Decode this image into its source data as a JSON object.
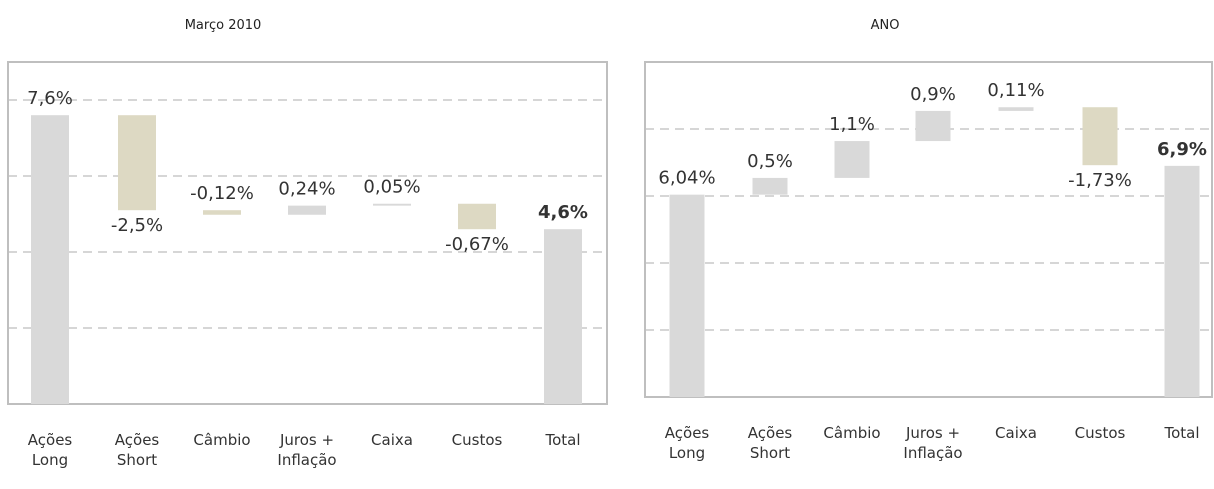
{
  "chart_data": [
    {
      "type": "waterfall",
      "title": "Março 2010",
      "categories": [
        "Ações Long",
        "Ações Short",
        "Câmbio",
        "Juros + Inflação",
        "Caixa",
        "Custos",
        "Total"
      ],
      "values": [
        7.6,
        -2.5,
        -0.12,
        0.24,
        0.05,
        -0.67,
        4.6
      ],
      "value_labels": [
        "7,6%",
        "-2,5%",
        "-0,12%",
        "0,24%",
        "0,05%",
        "-0,67%",
        "4,6%"
      ],
      "color": "#d9d9d9",
      "negative_color": "#ddd9c3",
      "ylim": [
        0,
        9
      ],
      "yticks": [
        2,
        4,
        6,
        8
      ],
      "grid": true
    },
    {
      "type": "waterfall",
      "title": "ANO",
      "categories": [
        "Ações Long",
        "Ações Short",
        "Câmbio",
        "Juros + Inflação",
        "Caixa",
        "Custos",
        "Total"
      ],
      "values": [
        6.04,
        0.5,
        1.1,
        0.9,
        0.11,
        -1.73,
        6.9
      ],
      "value_labels": [
        "6,04%",
        "0,5%",
        "1,1%",
        "0,9%",
        "0,11%",
        "-1,73%",
        "6,9%"
      ],
      "color": "#d9d9d9",
      "negative_color": "#ddd9c3",
      "ylim": [
        0,
        10
      ],
      "yticks": [
        2,
        4,
        6,
        8
      ],
      "grid": true
    }
  ]
}
